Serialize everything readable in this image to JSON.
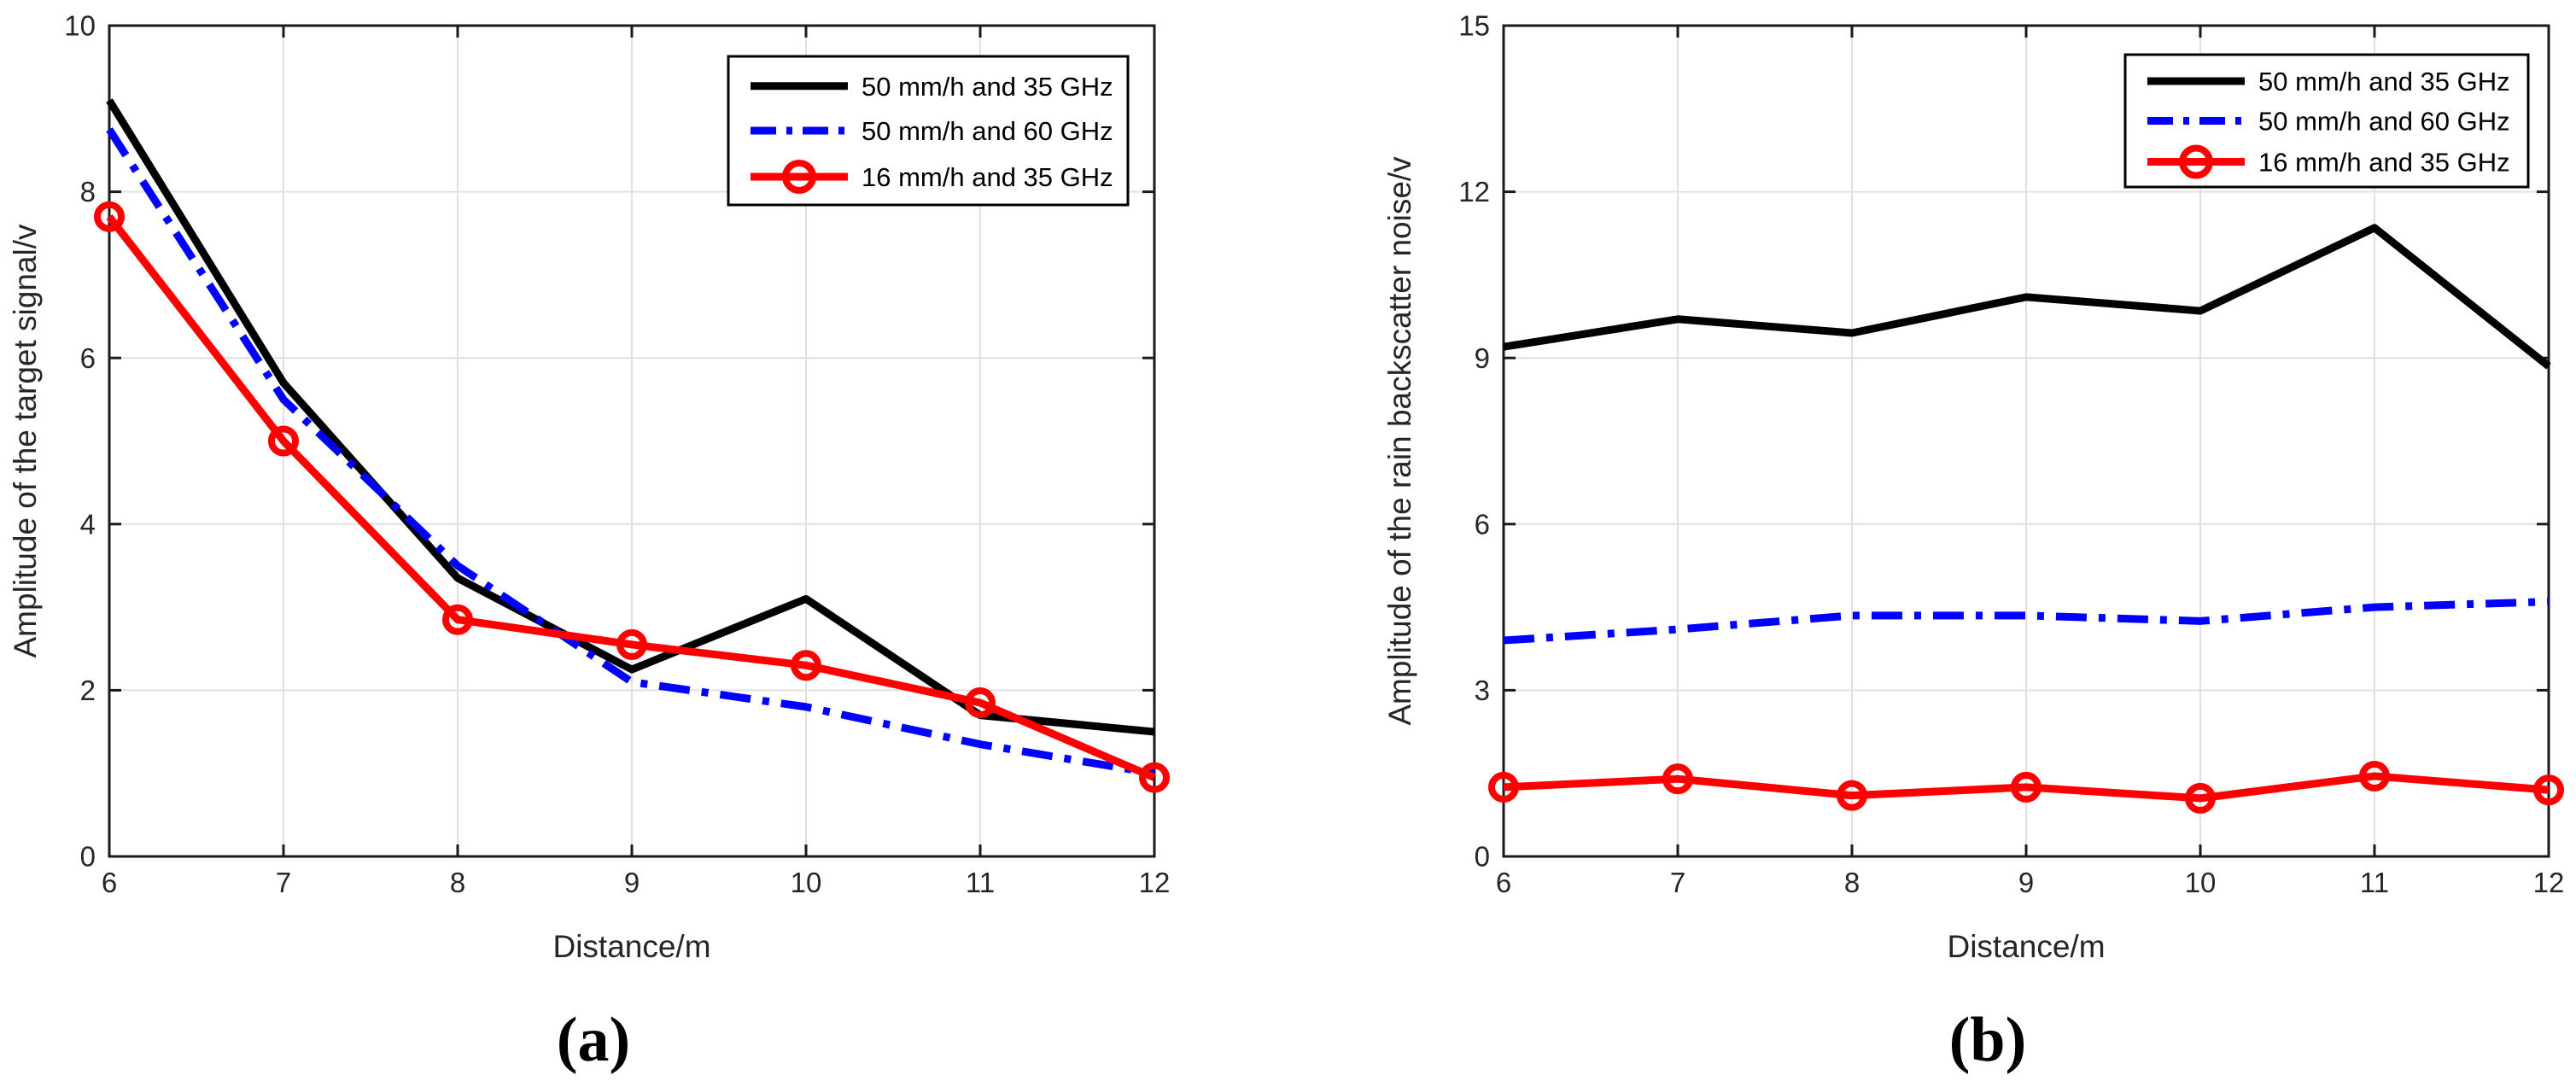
{
  "figure": {
    "background": "#ffffff",
    "grid_color": "#e0e0e0",
    "axis_color": "#1a1a1a",
    "tick_label_color": "#262626"
  },
  "chart_data": [
    {
      "type": "line",
      "caption": "(a)",
      "title": "",
      "xlabel": "Distance/m",
      "ylabel": "Amplitude of the target signal/v",
      "x": [
        6,
        7,
        8,
        9,
        10,
        11,
        12
      ],
      "xlim": [
        6,
        12
      ],
      "ylim": [
        0,
        10
      ],
      "xticks": [
        6,
        7,
        8,
        9,
        10,
        11,
        12
      ],
      "yticks": [
        0,
        2,
        4,
        6,
        8,
        10
      ],
      "grid": true,
      "legend_position": "top-right-inside",
      "series": [
        {
          "name": "50 mm/h and 35 GHz",
          "color": "#000000",
          "line_style": "solid",
          "marker": "none",
          "values": [
            9.1,
            5.7,
            3.35,
            2.25,
            3.1,
            1.7,
            1.5
          ]
        },
        {
          "name": "50 mm/h and 60 GHz",
          "color": "#0000ff",
          "line_style": "dash-dot",
          "marker": "none",
          "values": [
            8.75,
            5.5,
            3.5,
            2.1,
            1.8,
            1.35,
            1.0
          ]
        },
        {
          "name": "16 mm/h and 35 GHz",
          "color": "#ff0000",
          "line_style": "solid",
          "marker": "circle",
          "values": [
            7.7,
            5.0,
            2.85,
            2.55,
            2.3,
            1.85,
            0.95
          ]
        }
      ]
    },
    {
      "type": "line",
      "caption": "(b)",
      "title": "",
      "xlabel": "Distance/m",
      "ylabel": "Amplitude of the rain backscatter noise/v",
      "x": [
        6,
        7,
        8,
        9,
        10,
        11,
        12
      ],
      "xlim": [
        6,
        12
      ],
      "ylim": [
        0,
        15
      ],
      "xticks": [
        6,
        7,
        8,
        9,
        10,
        11,
        12
      ],
      "yticks": [
        0,
        3,
        6,
        9,
        12,
        15
      ],
      "grid": true,
      "legend_position": "top-right-inside",
      "series": [
        {
          "name": "50 mm/h and 35 GHz",
          "color": "#000000",
          "line_style": "solid",
          "marker": "none",
          "values": [
            9.2,
            9.7,
            9.45,
            10.1,
            9.85,
            11.35,
            8.85
          ]
        },
        {
          "name": "50 mm/h and 60 GHz",
          "color": "#0000ff",
          "line_style": "dash-dot",
          "marker": "none",
          "values": [
            3.9,
            4.1,
            4.35,
            4.35,
            4.25,
            4.5,
            4.6
          ]
        },
        {
          "name": "16 mm/h and 35 GHz",
          "color": "#ff0000",
          "line_style": "solid",
          "marker": "circle",
          "values": [
            1.25,
            1.4,
            1.1,
            1.25,
            1.05,
            1.45,
            1.2
          ]
        }
      ]
    }
  ]
}
